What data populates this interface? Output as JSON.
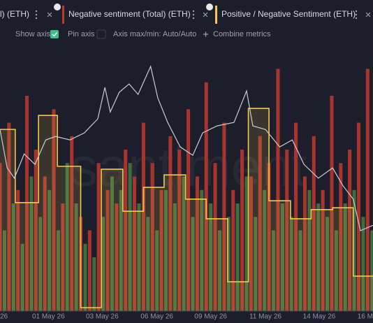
{
  "ui": {
    "tabs": [
      "l) (ETH)",
      "Negative sentiment (Total) (ETH)",
      "Positive / Negative Sentiment (ETH)"
    ],
    "toolbar": {
      "show_axis": "Show axis",
      "pin_axis": "Pin axis",
      "axis_range": "Axis max/min: Auto/Auto",
      "combine": "Combine metrics"
    },
    "watermark": "santiment"
  },
  "chart_data": {
    "type": "bar",
    "xlim": [
      0,
      416
    ],
    "ylim": [
      0,
      100
    ],
    "xticks": [
      {
        "value": 4,
        "label": "26"
      },
      {
        "value": 54,
        "label": "01 May 26"
      },
      {
        "value": 114,
        "label": "03 May 26"
      },
      {
        "value": 175,
        "label": "06 May 26"
      },
      {
        "value": 235,
        "label": "09 May 26"
      },
      {
        "value": 296,
        "label": "11 May 26"
      },
      {
        "value": 356,
        "label": "14 May 26"
      },
      {
        "value": 416,
        "label": "16 M"
      }
    ],
    "series": [
      {
        "type": "bar",
        "color": "#3d6e3f",
        "x": [
          5,
          15,
          25,
          35,
          45,
          55,
          65,
          75,
          85,
          95,
          105,
          115,
          125,
          135,
          145,
          155,
          165,
          175,
          185,
          195,
          205,
          215,
          225,
          235,
          245,
          255,
          265,
          275,
          285,
          295,
          305,
          315,
          325,
          335,
          345,
          355,
          365,
          375,
          385,
          395,
          405,
          415
        ],
        "values": [
          30,
          40,
          25,
          50,
          35,
          45,
          30,
          55,
          40,
          25,
          20,
          35,
          50,
          45,
          55,
          40,
          35,
          30,
          45,
          40,
          50,
          35,
          45,
          40,
          30,
          35,
          40,
          50,
          35,
          45,
          30,
          40,
          35,
          30,
          45,
          40,
          35,
          30,
          40,
          45,
          35,
          30
        ]
      },
      {
        "type": "bar",
        "name": "Negative sentiment (Total) (ETH)",
        "color": "#a9342e",
        "x": [
          0,
          10,
          20,
          30,
          40,
          50,
          60,
          70,
          80,
          90,
          100,
          110,
          120,
          130,
          140,
          150,
          160,
          170,
          180,
          190,
          200,
          210,
          220,
          230,
          240,
          250,
          260,
          270,
          280,
          290,
          300,
          310,
          320,
          330,
          340,
          350,
          360,
          370,
          380,
          390,
          400,
          410
        ],
        "values": [
          55,
          70,
          45,
          80,
          60,
          50,
          75,
          40,
          65,
          35,
          30,
          55,
          45,
          40,
          60,
          50,
          70,
          55,
          45,
          65,
          60,
          75,
          50,
          85,
          55,
          70,
          45,
          60,
          50,
          65,
          55,
          90,
          60,
          70,
          50,
          65,
          45,
          80,
          55,
          60,
          70,
          90
        ]
      },
      {
        "type": "step",
        "name": "Positive / Negative Sentiment (ETH)",
        "color": "#f2c94c",
        "x": [
          0,
          17,
          43,
          64,
          90,
          113,
          137,
          160,
          183,
          207,
          230,
          254,
          277,
          300,
          324,
          347,
          371,
          394
        ],
        "values": [
          67.5,
          40.3,
          72.7,
          53.8,
          1.3,
          52.7,
          37.1,
          46.0,
          50.6,
          41.6,
          34.3,
          10.9,
          75.3,
          41.0,
          34.3,
          37.7,
          38.4,
          13.0
        ]
      },
      {
        "type": "line",
        "name": "l) (ETH)",
        "color": "#c9ccd4",
        "x": [
          0,
          8,
          16,
          27,
          39,
          51,
          62,
          78,
          94,
          109,
          117,
          123,
          133,
          144,
          154,
          168,
          176,
          187,
          201,
          215,
          226,
          242,
          261,
          275,
          282,
          296,
          312,
          326,
          339,
          355,
          371,
          382,
          394,
          402,
          416
        ],
        "values": [
          67.5,
          53.2,
          49.4,
          58.4,
          54.5,
          63.6,
          64.9,
          63.6,
          66.2,
          71.4,
          83.1,
          74.0,
          81.3,
          84.4,
          80.5,
          90.9,
          79.2,
          70.1,
          61.0,
          57.9,
          66.2,
          68.8,
          70.1,
          81.8,
          68.8,
          67.5,
          61.0,
          63.6,
          54.5,
          49.4,
          53.2,
          46.8,
          41.6,
          29.9,
          31.9
        ]
      }
    ]
  }
}
